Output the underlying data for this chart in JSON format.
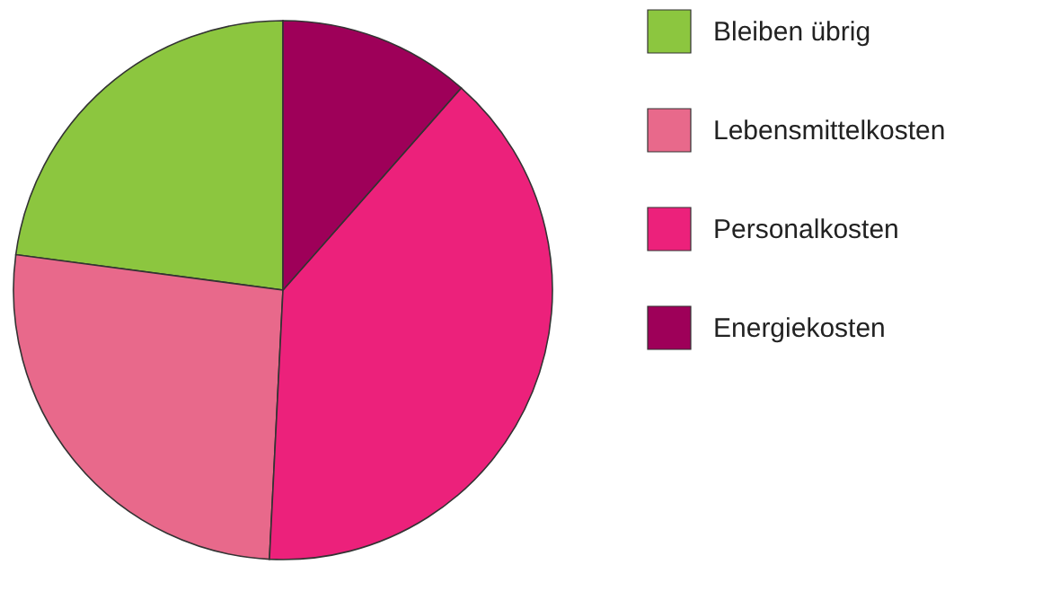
{
  "chart_data": {
    "type": "pie",
    "categories": [
      "Bleiben übrig",
      "Lebensmittelkosten",
      "Personalkosten",
      "Energiekosten"
    ],
    "values": [
      22.9,
      26.3,
      39.3,
      11.5
    ],
    "colors": [
      "#8cc63f",
      "#e8698b",
      "#ec217b",
      "#9e0059"
    ],
    "legend": "right"
  }
}
